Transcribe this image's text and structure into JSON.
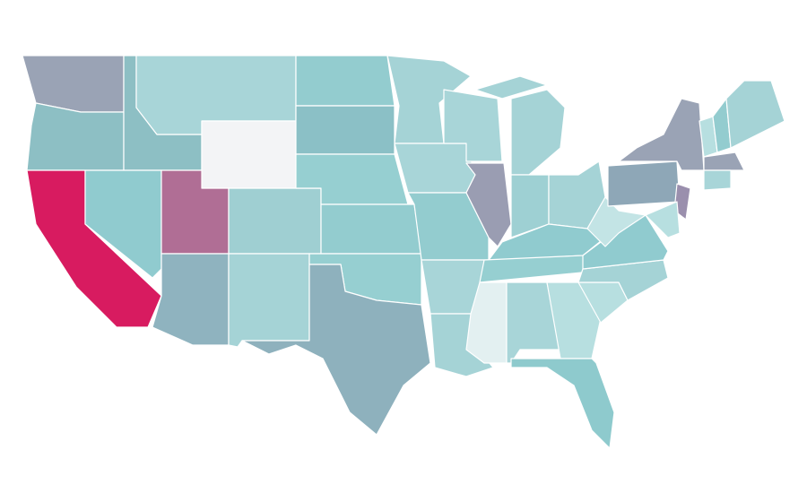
{
  "map": {
    "regions": [
      {
        "color": "#9aa3b5"
      },
      {
        "color": "#8dbfc4"
      },
      {
        "color": "#d81b60"
      },
      {
        "color": "#8dbfc4"
      },
      {
        "color": "#90cbcf"
      },
      {
        "color": "#a8d5d8"
      },
      {
        "color": "#f3f4f6"
      },
      {
        "color": "#b06e95"
      },
      {
        "color": "#8fb3bf"
      },
      {
        "color": "#9fcfd2"
      },
      {
        "color": "#a5d3d6"
      },
      {
        "color": "#93cccf"
      },
      {
        "color": "#8bc0c6"
      },
      {
        "color": "#96cfd1"
      },
      {
        "color": "#93cccf"
      },
      {
        "color": "#96cfd1"
      },
      {
        "color": "#8eb1bd"
      },
      {
        "color": "#a5d3d6"
      },
      {
        "color": "#a8d5d8"
      },
      {
        "color": "#93cccf"
      },
      {
        "color": "#a8d5d8"
      },
      {
        "color": "#a5d3d6"
      },
      {
        "color": "#a8d5d8"
      },
      {
        "color": "#9a9db2"
      },
      {
        "color": "#a5d3d6"
      },
      {
        "color": "#a5d3d6"
      },
      {
        "color": "#9ed0d3"
      },
      {
        "color": "#a5d3d6"
      },
      {
        "color": "#90cbcf"
      },
      {
        "color": "#96cfd1"
      },
      {
        "color": "#e3f0f1"
      },
      {
        "color": "#a8d5d8"
      },
      {
        "color": "#b7dfe0"
      },
      {
        "color": "#8ecacd"
      },
      {
        "color": "#b7dfe0"
      },
      {
        "color": "#a5d3d6"
      },
      {
        "color": "#90cbcf"
      },
      {
        "color": "#c3e4e5"
      },
      {
        "color": "#8ea7b7"
      },
      {
        "color": "#9aa3b5"
      },
      {
        "color": "#9a8fad"
      },
      {
        "color": "#b7dfe0"
      },
      {
        "color": "#b7dfe0"
      },
      {
        "color": "#93cccf"
      },
      {
        "color": "#a5d3d6"
      },
      {
        "color": "#9aa3b5"
      },
      {
        "color": "#a8d5d8"
      }
    ]
  }
}
